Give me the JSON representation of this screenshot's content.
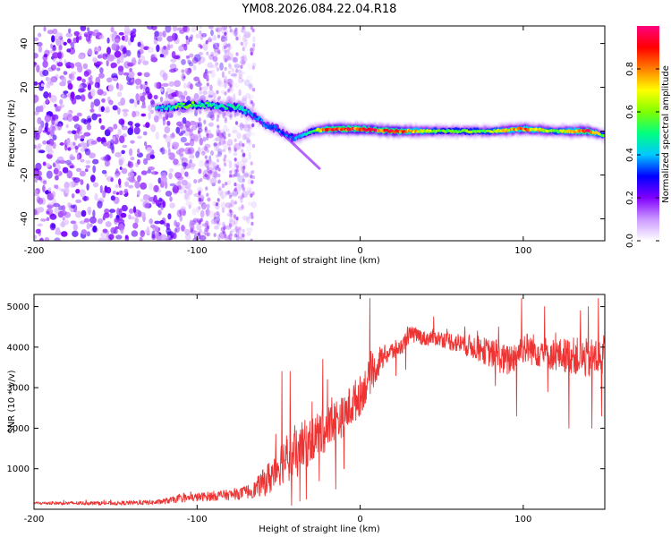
{
  "title": "YM08.2026.084.22.04.R18",
  "chart_data": [
    {
      "type": "heatmap",
      "name": "spectrogram",
      "xlabel": "Height of straight line (km)",
      "ylabel": "Frequency (Hz)",
      "xlim": [
        -200,
        150
      ],
      "ylim": [
        -50,
        48
      ],
      "xticks": [
        -200,
        -100,
        0,
        100
      ],
      "yticks": [
        -40,
        -20,
        0,
        20,
        40
      ],
      "grid": false,
      "colorbar": {
        "label": "Normalized spectral amplitude",
        "range": [
          0.0,
          1.0
        ],
        "ticks": [
          "0.0",
          "0.2",
          "0.4",
          "0.6",
          "0.8"
        ],
        "colors": [
          "#ffffff",
          "#cc99ff",
          "#8000ff",
          "#0000ff",
          "#00c8ff",
          "#00ff80",
          "#80ff00",
          "#ffff00",
          "#ff8000",
          "#ff0000",
          "#ff0080"
        ]
      },
      "ridge": {
        "description": "dominant frequency vs height",
        "x": [
          -125,
          -115,
          -105,
          -95,
          -85,
          -75,
          -70,
          -65,
          -60,
          -55,
          -50,
          -45,
          -40,
          -35,
          -30,
          -20,
          -10,
          0,
          20,
          50,
          80,
          100,
          120,
          140,
          150
        ],
        "y": [
          10,
          11,
          12,
          12,
          11,
          11,
          9,
          7,
          4,
          2,
          1,
          -2,
          -3,
          -2,
          0,
          1,
          1,
          1,
          0,
          0,
          0,
          1,
          0,
          0,
          -2
        ],
        "amplitude": [
          0.4,
          0.5,
          0.55,
          0.5,
          0.45,
          0.5,
          0.45,
          0.35,
          0.35,
          0.3,
          0.35,
          0.35,
          0.35,
          0.4,
          0.5,
          0.85,
          0.9,
          0.85,
          0.9,
          0.55,
          0.6,
          0.8,
          0.6,
          0.9,
          0.5
        ]
      },
      "noise_region": {
        "x": [
          -200,
          -65
        ],
        "amplitude": [
          0.05,
          0.25
        ]
      },
      "spur": {
        "x": [
          -45,
          -25
        ],
        "y": [
          -3,
          -17
        ]
      }
    },
    {
      "type": "line",
      "name": "snr",
      "xlabel": "Height of straight line (km)",
      "ylabel": "SNR (10 * v/v)",
      "xlim": [
        -200,
        150
      ],
      "ylim": [
        0,
        5300
      ],
      "xticks": [
        -200,
        -100,
        0,
        100
      ],
      "yticks": [
        1000,
        2000,
        3000,
        4000,
        5000
      ],
      "grid": false,
      "color": "#ee3333",
      "series": [
        {
          "name": "SNR",
          "x": [
            -200,
            -150,
            -125,
            -110,
            -90,
            -75,
            -65,
            -55,
            -50,
            -45,
            -40,
            -35,
            -30,
            -25,
            -20,
            -15,
            -10,
            -5,
            0,
            5,
            10,
            15,
            20,
            25,
            30,
            35,
            40,
            45,
            50,
            60,
            70,
            80,
            90,
            95,
            100,
            110,
            120,
            130,
            140,
            150
          ],
          "y": [
            150,
            150,
            170,
            260,
            330,
            370,
            480,
            800,
            1100,
            1300,
            1300,
            1550,
            1700,
            1900,
            2000,
            2200,
            2300,
            2600,
            2800,
            3200,
            3500,
            3800,
            3900,
            4000,
            4300,
            4300,
            4200,
            4250,
            4200,
            4100,
            4000,
            3850,
            3650,
            3800,
            4000,
            3900,
            3800,
            3800,
            3700,
            3800
          ],
          "noise": [
            40,
            50,
            60,
            90,
            120,
            130,
            200,
            450,
            550,
            600,
            600,
            650,
            550,
            600,
            550,
            550,
            500,
            550,
            500,
            450,
            350,
            250,
            250,
            200,
            200,
            200,
            180,
            200,
            200,
            250,
            300,
            350,
            400,
            400,
            400,
            400,
            400,
            450,
            500,
            500
          ],
          "peaks": [
            [
              -48,
              3400
            ],
            [
              -43,
              3400
            ],
            [
              -23,
              3700
            ],
            [
              -20,
              3200
            ],
            [
              6,
              5200
            ],
            [
              12,
              4000
            ],
            [
              29,
              4500
            ],
            [
              45,
              4750
            ],
            [
              72,
              4400
            ],
            [
              85,
              4500
            ],
            [
              99,
              5200
            ],
            [
              113,
              5000
            ],
            [
              135,
              4900
            ],
            [
              140,
              5000
            ],
            [
              146,
              5200
            ]
          ],
          "dips": [
            [
              -42,
              100
            ],
            [
              -37,
              200
            ],
            [
              -33,
              250
            ],
            [
              -25,
              700
            ],
            [
              -15,
              500
            ],
            [
              -10,
              1000
            ],
            [
              22,
              3300
            ],
            [
              28,
              3450
            ],
            [
              83,
              3050
            ],
            [
              96,
              2300
            ],
            [
              115,
              2900
            ],
            [
              128,
              2000
            ],
            [
              142,
              2000
            ],
            [
              148,
              2300
            ]
          ]
        }
      ]
    }
  ]
}
